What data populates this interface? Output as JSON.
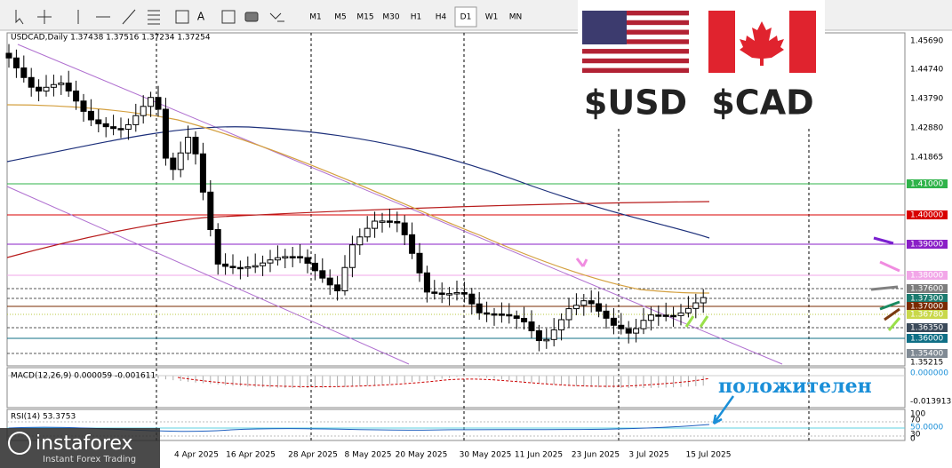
{
  "toolbar": {
    "text_tool": "A",
    "timeframes": [
      "M1",
      "M5",
      "M15",
      "M30",
      "H1",
      "H4",
      "D1",
      "W1",
      "MN"
    ],
    "selected": "D1"
  },
  "chart": {
    "header": "USDCAD,Daily  1.37438 1.37516 1.37234 1.37254",
    "price_labels": [
      {
        "text": "1.45690"
      },
      {
        "text": "1.44740"
      },
      {
        "text": "1.43790"
      },
      {
        "text": "1.42880"
      },
      {
        "text": "1.41865"
      },
      {
        "text": "1.41000",
        "color": "#2fb34a"
      },
      {
        "text": "1.40000",
        "color": "#d80000"
      },
      {
        "text": "1.39000",
        "color": "#8a1fc7"
      },
      {
        "text": "1.38000",
        "color": "#f2a6e8"
      },
      {
        "text": "1.37600",
        "color": "#7d7d7d"
      },
      {
        "text": "1.37300",
        "color": "#1b7a6e"
      },
      {
        "text": "1.37000",
        "color": "#7a2a00"
      },
      {
        "text": "1.36780",
        "color": "#c9d84a"
      },
      {
        "text": "1.36350",
        "color": "#3b4a5a"
      },
      {
        "text": "1.36000",
        "color": "#0f6f86"
      },
      {
        "text": "1.35400",
        "color": "#808a94"
      },
      {
        "text": "1.35215"
      }
    ],
    "dates": [
      "4 Apr 2025",
      "16 Apr 2025",
      "28 Apr 2025",
      "8 May 2025",
      "20 May 2025",
      "30 May 2025",
      "11 Jun 2025",
      "23 Jun 2025",
      "3 Jul 2025",
      "15 Jul 2025"
    ],
    "macd": {
      "label": "MACD(12,26,9) 0.000059 -0.001611",
      "axis": [
        "0.000000",
        "-0.013913"
      ]
    },
    "rsi": {
      "label": "RSI(14) 53.3753",
      "axis": [
        "100",
        "70",
        "50.0000",
        "30",
        "0"
      ]
    },
    "annotation": "положителен"
  },
  "banner": {
    "usd": "$USD",
    "cad": "$CAD"
  },
  "logo": {
    "name": "instaforex",
    "tagline": "Instant Forex Trading"
  }
}
